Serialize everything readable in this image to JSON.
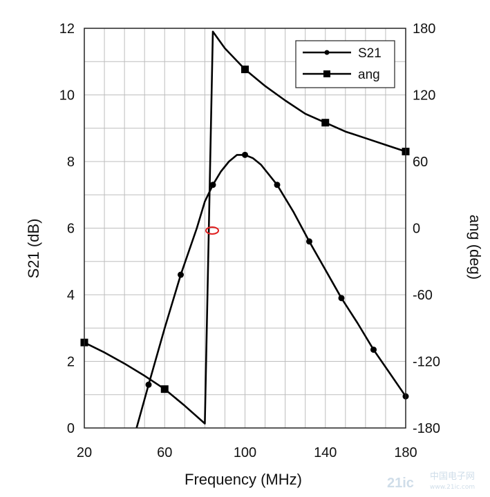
{
  "chart_data": {
    "type": "line",
    "xlabel": "Frequency (MHz)",
    "ylabel_left": "S21 (dB)",
    "ylabel_right": "ang (deg)",
    "xlim": [
      20,
      180
    ],
    "xticks": [
      "20",
      "60",
      "100",
      "140",
      "180"
    ],
    "ylim_left": [
      0,
      12
    ],
    "yticks_left": [
      "0",
      "2",
      "4",
      "6",
      "8",
      "10",
      "12"
    ],
    "ylim_right": [
      -180,
      180
    ],
    "yticks_right": [
      "-180",
      "-120",
      "-60",
      "0",
      "60",
      "120",
      "180"
    ],
    "grid": true,
    "legend_position": "top-right",
    "series": [
      {
        "name": "S21",
        "axis": "left",
        "marker": "circle",
        "color": "#000000",
        "x": [
          46,
          52,
          60,
          68,
          76,
          80,
          84,
          88,
          92,
          96,
          100,
          104,
          108,
          116,
          124,
          132,
          140,
          148,
          156,
          164,
          172,
          180
        ],
        "y": [
          0,
          1.3,
          3.0,
          4.6,
          6.0,
          6.8,
          7.3,
          7.7,
          8.0,
          8.2,
          8.2,
          8.1,
          7.9,
          7.3,
          6.5,
          5.6,
          4.75,
          3.9,
          3.15,
          2.35,
          1.65,
          0.95
        ],
        "markers_x": [
          52,
          68,
          84,
          100,
          116,
          132,
          148,
          164,
          180
        ]
      },
      {
        "name": "ang",
        "axis": "right",
        "marker": "square",
        "color": "#000000",
        "x": [
          20,
          30,
          40,
          50,
          60,
          70,
          80,
          84,
          90,
          100,
          110,
          120,
          130,
          140,
          150,
          160,
          170,
          180
        ],
        "y": [
          -103,
          -112,
          -122,
          -133,
          -145,
          -160,
          -176,
          177,
          162,
          143,
          128,
          115,
          103,
          95,
          87,
          81,
          75,
          69
        ],
        "markers_x": [
          20,
          60,
          100,
          140,
          180
        ]
      }
    ]
  },
  "watermark": {
    "main": "21ic",
    "sub1": "中国电子网",
    "sub2": "www.21ic.com"
  }
}
